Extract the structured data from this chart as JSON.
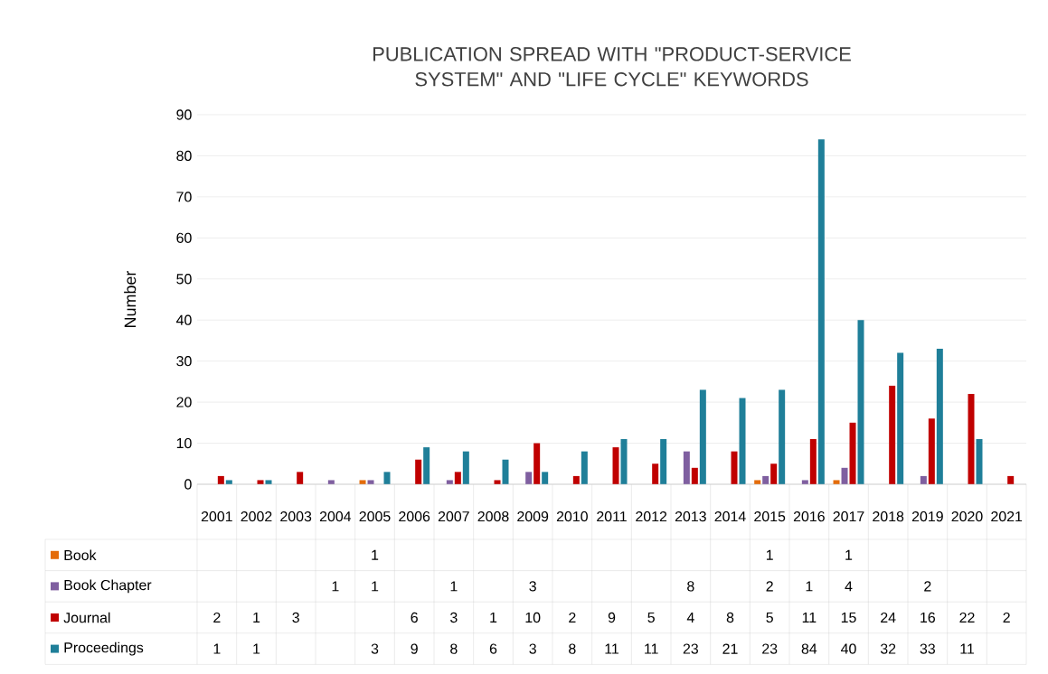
{
  "chart_data": {
    "type": "bar",
    "title": "PUBLICATION SPREAD WITH \"PRODUCT-SERVICE SYSTEM\" AND \"LIFE CYCLE\" KEYWORDS",
    "ylabel": "Number",
    "categories": [
      "2001",
      "2002",
      "2003",
      "2004",
      "2005",
      "2006",
      "2007",
      "2008",
      "2009",
      "2010",
      "2011",
      "2012",
      "2013",
      "2014",
      "2015",
      "2016",
      "2017",
      "2018",
      "2019",
      "2020",
      "2021"
    ],
    "series": [
      {
        "name": "Book",
        "color": "#e46c0a",
        "values": [
          null,
          null,
          null,
          null,
          1,
          null,
          null,
          null,
          null,
          null,
          null,
          null,
          null,
          null,
          1,
          null,
          1,
          null,
          null,
          null,
          null
        ]
      },
      {
        "name": "Book Chapter",
        "color": "#7f5fa0",
        "values": [
          null,
          null,
          null,
          1,
          1,
          null,
          1,
          null,
          3,
          null,
          null,
          null,
          8,
          null,
          2,
          1,
          4,
          null,
          2,
          null,
          null
        ]
      },
      {
        "name": "Journal",
        "color": "#c00000",
        "values": [
          2,
          1,
          3,
          null,
          null,
          6,
          3,
          1,
          10,
          2,
          9,
          5,
          4,
          8,
          5,
          11,
          15,
          24,
          16,
          22,
          2
        ]
      },
      {
        "name": "Proceedings",
        "color": "#1f7f99",
        "values": [
          1,
          1,
          null,
          null,
          3,
          9,
          8,
          6,
          3,
          8,
          11,
          11,
          23,
          21,
          23,
          84,
          40,
          32,
          33,
          11,
          null
        ]
      }
    ],
    "ylim": [
      0,
      90
    ],
    "yticks": [
      0,
      10,
      20,
      30,
      40,
      50,
      60,
      70,
      80,
      90
    ],
    "grid": "y",
    "legend": "bottom",
    "data_labels": true
  }
}
